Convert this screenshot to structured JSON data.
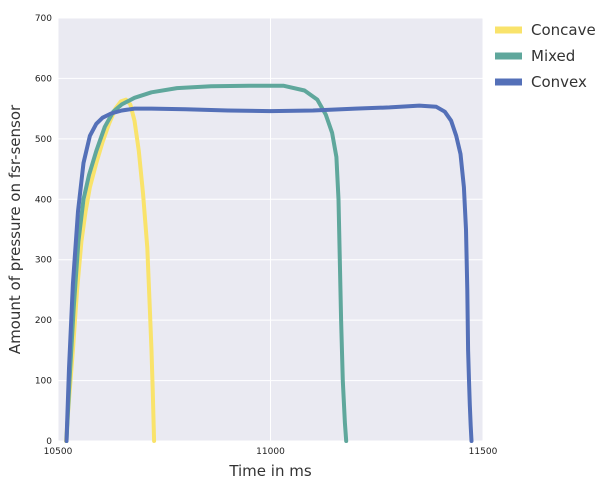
{
  "chart_data": {
    "type": "line",
    "title": "",
    "xlabel": "Time in ms",
    "ylabel": "Amount of pressure on fsr-sensor",
    "xlim": [
      10500,
      11500
    ],
    "ylim": [
      0,
      700
    ],
    "xticks": [
      10500,
      11000,
      11500
    ],
    "yticks": [
      0,
      100,
      200,
      300,
      400,
      500,
      600,
      700
    ],
    "grid": true,
    "legend": "outside-right",
    "background": "#eaeaf2",
    "series": [
      {
        "name": "Concave",
        "color": "#f9e36b",
        "x": [
          10519,
          10525,
          10535,
          10545,
          10555,
          10565,
          10575,
          10590,
          10605,
          10620,
          10635,
          10648,
          10660,
          10670,
          10680,
          10690,
          10700,
          10710,
          10716,
          10720,
          10723,
          10725,
          10726
        ],
        "y": [
          0,
          60,
          150,
          250,
          330,
          380,
          420,
          460,
          495,
          525,
          550,
          562,
          565,
          557,
          530,
          480,
          410,
          320,
          220,
          150,
          80,
          30,
          0
        ]
      },
      {
        "name": "Mixed",
        "color": "#5fa79c",
        "x": [
          10520,
          10527,
          10537,
          10548,
          10560,
          10573,
          10590,
          10610,
          10630,
          10650,
          10680,
          10720,
          10780,
          10860,
          10950,
          11030,
          11080,
          11110,
          11130,
          11145,
          11155,
          11160,
          11163,
          11166,
          11170,
          11175,
          11178
        ],
        "y": [
          0,
          100,
          220,
          330,
          400,
          440,
          480,
          520,
          545,
          557,
          568,
          577,
          584,
          587,
          588,
          588,
          580,
          565,
          540,
          510,
          470,
          400,
          300,
          200,
          100,
          30,
          0
        ]
      },
      {
        "name": "Convex",
        "color": "#5470b8",
        "x": [
          10520,
          10526,
          10535,
          10547,
          10560,
          10575,
          10590,
          10605,
          10625,
          10650,
          10680,
          10720,
          10800,
          10900,
          11000,
          11100,
          11200,
          11280,
          11350,
          11390,
          11410,
          11425,
          11437,
          11447,
          11455,
          11460,
          11463,
          11464,
          11465,
          11467,
          11469,
          11471,
          11473
        ],
        "y": [
          0,
          120,
          260,
          380,
          460,
          505,
          525,
          535,
          542,
          547,
          550,
          550,
          549,
          547,
          546,
          547,
          550,
          552,
          555,
          553,
          545,
          530,
          505,
          475,
          420,
          350,
          250,
          200,
          150,
          100,
          60,
          25,
          0
        ]
      }
    ]
  }
}
